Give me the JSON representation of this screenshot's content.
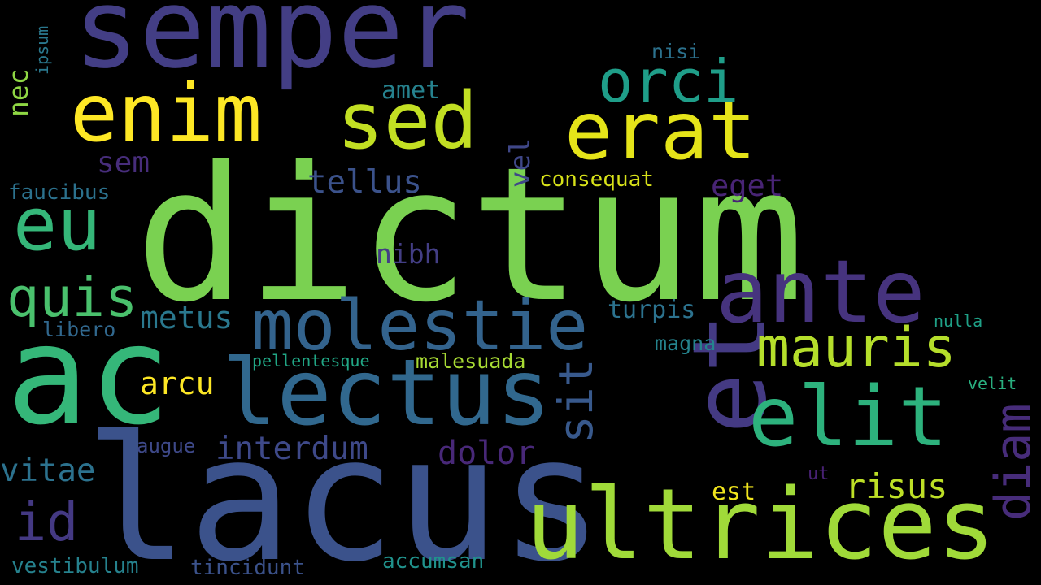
{
  "words": [
    {
      "text": "dictum",
      "color": "#7ad151",
      "orientation": "horizontal"
    },
    {
      "text": "lacus",
      "color": "#3b528b",
      "orientation": "horizontal"
    },
    {
      "text": "ac",
      "color": "#35b779",
      "orientation": "horizontal"
    },
    {
      "text": "semper",
      "color": "#433e85",
      "orientation": "horizontal"
    },
    {
      "text": "ultrices",
      "color": "#a0da39",
      "orientation": "horizontal"
    },
    {
      "text": "et",
      "color": "#443a83",
      "orientation": "vertical"
    },
    {
      "text": "lectus",
      "color": "#31688e",
      "orientation": "horizontal"
    },
    {
      "text": "ante",
      "color": "#46337e",
      "orientation": "horizontal"
    },
    {
      "text": "enim",
      "color": "#fde725",
      "orientation": "horizontal"
    },
    {
      "text": "erat",
      "color": "#e5e419",
      "orientation": "horizontal"
    },
    {
      "text": "sed",
      "color": "#c2df23",
      "orientation": "horizontal"
    },
    {
      "text": "elit",
      "color": "#2db27d",
      "orientation": "horizontal"
    },
    {
      "text": "eu",
      "color": "#35b779",
      "orientation": "horizontal"
    },
    {
      "text": "molestie",
      "color": "#33638d",
      "orientation": "horizontal"
    },
    {
      "text": "orci",
      "color": "#1f9e89",
      "orientation": "horizontal"
    },
    {
      "text": "mauris",
      "color": "#b5de2b",
      "orientation": "horizontal"
    },
    {
      "text": "quis",
      "color": "#4ac16d",
      "orientation": "horizontal"
    },
    {
      "text": "sit",
      "color": "#38598c",
      "orientation": "vertical"
    },
    {
      "text": "diam",
      "color": "#472c7a",
      "orientation": "vertical"
    },
    {
      "text": "id",
      "color": "#443983",
      "orientation": "horizontal"
    },
    {
      "text": "interdum",
      "color": "#3e4989",
      "orientation": "horizontal"
    },
    {
      "text": "metus",
      "color": "#2a788e",
      "orientation": "horizontal"
    },
    {
      "text": "vitae",
      "color": "#2c728e",
      "orientation": "horizontal"
    },
    {
      "text": "tellus",
      "color": "#3b528b",
      "orientation": "horizontal"
    },
    {
      "text": "dolor",
      "color": "#482878",
      "orientation": "horizontal"
    },
    {
      "text": "risus",
      "color": "#bddf26",
      "orientation": "horizontal"
    },
    {
      "text": "arcu",
      "color": "#fde725",
      "orientation": "horizontal"
    },
    {
      "text": "eget",
      "color": "#482475",
      "orientation": "horizontal"
    },
    {
      "text": "vel",
      "color": "#3f4788",
      "orientation": "vertical"
    },
    {
      "text": "sem",
      "color": "#472d7b",
      "orientation": "horizontal"
    },
    {
      "text": "nibh",
      "color": "#433e85",
      "orientation": "horizontal"
    },
    {
      "text": "turpis",
      "color": "#2c728e",
      "orientation": "horizontal"
    },
    {
      "text": "nec",
      "color": "#8fd744",
      "orientation": "vertical"
    },
    {
      "text": "amet",
      "color": "#26828e",
      "orientation": "horizontal"
    },
    {
      "text": "consequat",
      "color": "#d8e219",
      "orientation": "horizontal"
    },
    {
      "text": "faucibus",
      "color": "#2c728e",
      "orientation": "horizontal"
    },
    {
      "text": "libero",
      "color": "#31688e",
      "orientation": "horizontal"
    },
    {
      "text": "malesuada",
      "color": "#a8db34",
      "orientation": "horizontal"
    },
    {
      "text": "magna",
      "color": "#25848e",
      "orientation": "horizontal"
    },
    {
      "text": "augue",
      "color": "#3e4989",
      "orientation": "horizontal"
    },
    {
      "text": "est",
      "color": "#f1e51d",
      "orientation": "horizontal"
    },
    {
      "text": "vestibulum",
      "color": "#26828e",
      "orientation": "horizontal"
    },
    {
      "text": "tincidunt",
      "color": "#3b528b",
      "orientation": "horizontal"
    },
    {
      "text": "accumsan",
      "color": "#20928c",
      "orientation": "horizontal"
    },
    {
      "text": "nisi",
      "color": "#2c728e",
      "orientation": "horizontal"
    },
    {
      "text": "ipsum",
      "color": "#2a788e",
      "orientation": "vertical"
    },
    {
      "text": "pellentesque",
      "color": "#21a685",
      "orientation": "horizontal"
    },
    {
      "text": "nulla",
      "color": "#1fa187",
      "orientation": "horizontal"
    },
    {
      "text": "velit",
      "color": "#29af7f",
      "orientation": "horizontal"
    },
    {
      "text": "ut",
      "color": "#482173",
      "orientation": "horizontal"
    }
  ]
}
